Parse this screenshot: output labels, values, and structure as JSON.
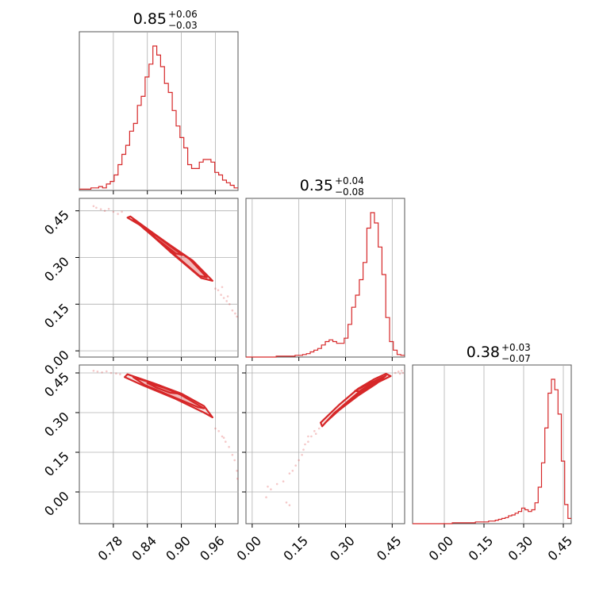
{
  "chart_data": {
    "type": "corner",
    "color": "#d62728",
    "parameters": [
      {
        "median": "0.85",
        "plus": "+0.06",
        "minus": "−0.03",
        "range": [
          0.72,
          1.0
        ],
        "ticks": [
          "0.78",
          "0.84",
          "0.90",
          "0.96"
        ],
        "tick_values": [
          0.78,
          0.84,
          0.9,
          0.96
        ]
      },
      {
        "median": "0.35",
        "plus": "+0.04",
        "minus": "−0.08",
        "range": [
          -0.02,
          0.49
        ],
        "ticks": [
          "0.00",
          "0.15",
          "0.30",
          "0.45"
        ],
        "tick_values": [
          0.0,
          0.15,
          0.3,
          0.45
        ]
      },
      {
        "median": "0.38",
        "plus": "+0.03",
        "minus": "−0.07",
        "range": [
          -0.12,
          0.48
        ],
        "ticks": [
          "0.00",
          "0.15",
          "0.30",
          "0.45"
        ],
        "tick_values": [
          0.0,
          0.15,
          0.3,
          0.45
        ]
      }
    ],
    "histograms": [
      {
        "x_start": 0.72,
        "x_end": 1.0,
        "values": [
          1,
          1,
          1,
          2,
          2,
          3,
          2,
          5,
          7,
          12,
          20,
          28,
          35,
          46,
          52,
          66,
          73,
          88,
          98,
          112,
          105,
          96,
          83,
          76,
          62,
          50,
          41,
          33,
          20,
          17,
          17,
          22,
          24,
          24,
          22,
          14,
          12,
          8,
          6,
          4,
          2
        ]
      },
      {
        "x_start": -0.02,
        "x_end": 0.49,
        "values": [
          0,
          0,
          0,
          0,
          0,
          0,
          0,
          0,
          1,
          1,
          1,
          1,
          1,
          2,
          2,
          3,
          4,
          6,
          8,
          10,
          14,
          18,
          20,
          18,
          16,
          16,
          22,
          38,
          58,
          72,
          90,
          110,
          150,
          168,
          156,
          128,
          96,
          46,
          18,
          8,
          3,
          2
        ]
      },
      {
        "x_start": -0.12,
        "x_end": 0.48,
        "values": [
          0,
          0,
          0,
          0,
          0,
          0,
          0,
          0,
          0,
          0,
          0,
          0,
          1,
          1,
          1,
          1,
          1,
          1,
          1,
          2,
          2,
          2,
          2,
          3,
          3,
          4,
          5,
          6,
          7,
          9,
          10,
          12,
          14,
          18,
          16,
          14,
          16,
          24,
          42,
          70,
          110,
          150,
          166,
          154,
          126,
          72,
          22,
          6
        ]
      }
    ],
    "contours": [
      {
        "pair": "x1_vs_x0",
        "levels": [
          [
            [
              0.81,
              0.432
            ],
            [
              0.86,
              0.365
            ],
            [
              0.92,
              0.29
            ],
            [
              0.955,
              0.225
            ],
            [
              0.935,
              0.234
            ],
            [
              0.88,
              0.319
            ],
            [
              0.83,
              0.401
            ],
            [
              0.805,
              0.428
            ],
            [
              0.81,
              0.432
            ]
          ],
          [
            [
              0.815,
              0.424
            ],
            [
              0.86,
              0.366
            ],
            [
              0.915,
              0.294
            ],
            [
              0.945,
              0.236
            ],
            [
              0.932,
              0.241
            ],
            [
              0.88,
              0.322
            ],
            [
              0.832,
              0.396
            ],
            [
              0.815,
              0.424
            ]
          ],
          [
            [
              0.835,
              0.398
            ],
            [
              0.868,
              0.353
            ],
            [
              0.902,
              0.308
            ],
            [
              0.89,
              0.313
            ],
            [
              0.855,
              0.362
            ],
            [
              0.835,
              0.398
            ]
          ]
        ]
      },
      {
        "pair": "x2_vs_x0",
        "levels": [
          [
            [
              0.805,
              0.445
            ],
            [
              0.85,
              0.412
            ],
            [
              0.9,
              0.372
            ],
            [
              0.94,
              0.325
            ],
            [
              0.955,
              0.282
            ],
            [
              0.94,
              0.3
            ],
            [
              0.89,
              0.352
            ],
            [
              0.83,
              0.405
            ],
            [
              0.8,
              0.434
            ],
            [
              0.805,
              0.445
            ]
          ],
          [
            [
              0.815,
              0.434
            ],
            [
              0.86,
              0.404
            ],
            [
              0.9,
              0.366
            ],
            [
              0.94,
              0.316
            ],
            [
              0.93,
              0.32
            ],
            [
              0.885,
              0.36
            ],
            [
              0.835,
              0.405
            ],
            [
              0.815,
              0.434
            ]
          ],
          [
            [
              0.84,
              0.412
            ],
            [
              0.87,
              0.394
            ],
            [
              0.895,
              0.372
            ],
            [
              0.88,
              0.375
            ],
            [
              0.855,
              0.395
            ],
            [
              0.84,
              0.412
            ]
          ]
        ]
      },
      {
        "pair": "x2_vs_x1",
        "levels": [
          [
            [
              0.22,
              0.262
            ],
            [
              0.28,
              0.33
            ],
            [
              0.34,
              0.39
            ],
            [
              0.39,
              0.425
            ],
            [
              0.43,
              0.447
            ],
            [
              0.445,
              0.438
            ],
            [
              0.4,
              0.412
            ],
            [
              0.33,
              0.362
            ],
            [
              0.265,
              0.3
            ],
            [
              0.225,
              0.248
            ],
            [
              0.22,
              0.262
            ]
          ],
          [
            [
              0.235,
              0.262
            ],
            [
              0.29,
              0.325
            ],
            [
              0.35,
              0.385
            ],
            [
              0.4,
              0.42
            ],
            [
              0.43,
              0.44
            ],
            [
              0.4,
              0.41
            ],
            [
              0.34,
              0.364
            ],
            [
              0.28,
              0.31
            ],
            [
              0.235,
              0.262
            ]
          ],
          [
            [
              0.33,
              0.382
            ],
            [
              0.38,
              0.412
            ],
            [
              0.42,
              0.434
            ],
            [
              0.39,
              0.41
            ],
            [
              0.345,
              0.38
            ],
            [
              0.33,
              0.382
            ]
          ]
        ]
      }
    ],
    "scatter": [
      {
        "pair": "x1_vs_x0",
        "points": [
          [
            0.745,
            0.465
          ],
          [
            0.75,
            0.46
          ],
          [
            0.758,
            0.455
          ],
          [
            0.765,
            0.45
          ],
          [
            0.772,
            0.456
          ],
          [
            0.78,
            0.447
          ],
          [
            0.788,
            0.44
          ],
          [
            0.795,
            0.447
          ],
          [
            0.96,
            0.2
          ],
          [
            0.965,
            0.195
          ],
          [
            0.97,
            0.18
          ],
          [
            0.975,
            0.17
          ],
          [
            0.98,
            0.16
          ],
          [
            0.985,
            0.15
          ],
          [
            0.99,
            0.13
          ],
          [
            0.995,
            0.12
          ],
          [
            0.998,
            0.11
          ],
          [
            0.972,
            0.205
          ],
          [
            0.982,
            0.175
          ]
        ]
      },
      {
        "pair": "x2_vs_x0",
        "points": [
          [
            0.745,
            0.458
          ],
          [
            0.752,
            0.455
          ],
          [
            0.76,
            0.452
          ],
          [
            0.768,
            0.456
          ],
          [
            0.776,
            0.45
          ],
          [
            0.785,
            0.448
          ],
          [
            0.792,
            0.445
          ],
          [
            0.96,
            0.24
          ],
          [
            0.966,
            0.23
          ],
          [
            0.972,
            0.21
          ],
          [
            0.978,
            0.19
          ],
          [
            0.984,
            0.17
          ],
          [
            0.99,
            0.14
          ],
          [
            0.994,
            0.12
          ],
          [
            0.998,
            0.08
          ],
          [
            0.999,
            0.05
          ],
          [
            0.975,
            0.205
          ]
        ]
      },
      {
        "pair": "x2_vs_x1",
        "points": [
          [
            0.2,
            0.23
          ],
          [
            0.19,
            0.21
          ],
          [
            0.18,
            0.19
          ],
          [
            0.17,
            0.18
          ],
          [
            0.165,
            0.16
          ],
          [
            0.16,
            0.14
          ],
          [
            0.15,
            0.12
          ],
          [
            0.14,
            0.1
          ],
          [
            0.13,
            0.08
          ],
          [
            0.12,
            0.07
          ],
          [
            0.1,
            0.04
          ],
          [
            0.08,
            0.03
          ],
          [
            0.06,
            0.01
          ],
          [
            0.05,
            0.02
          ],
          [
            0.045,
            -0.02
          ],
          [
            0.12,
            -0.05
          ],
          [
            0.11,
            -0.04
          ],
          [
            0.18,
            0.21
          ],
          [
            0.215,
            0.24
          ],
          [
            0.205,
            0.22
          ],
          [
            0.46,
            0.45
          ],
          [
            0.47,
            0.455
          ],
          [
            0.48,
            0.458
          ],
          [
            0.475,
            0.447
          ],
          [
            0.485,
            0.45
          ]
        ]
      }
    ]
  }
}
